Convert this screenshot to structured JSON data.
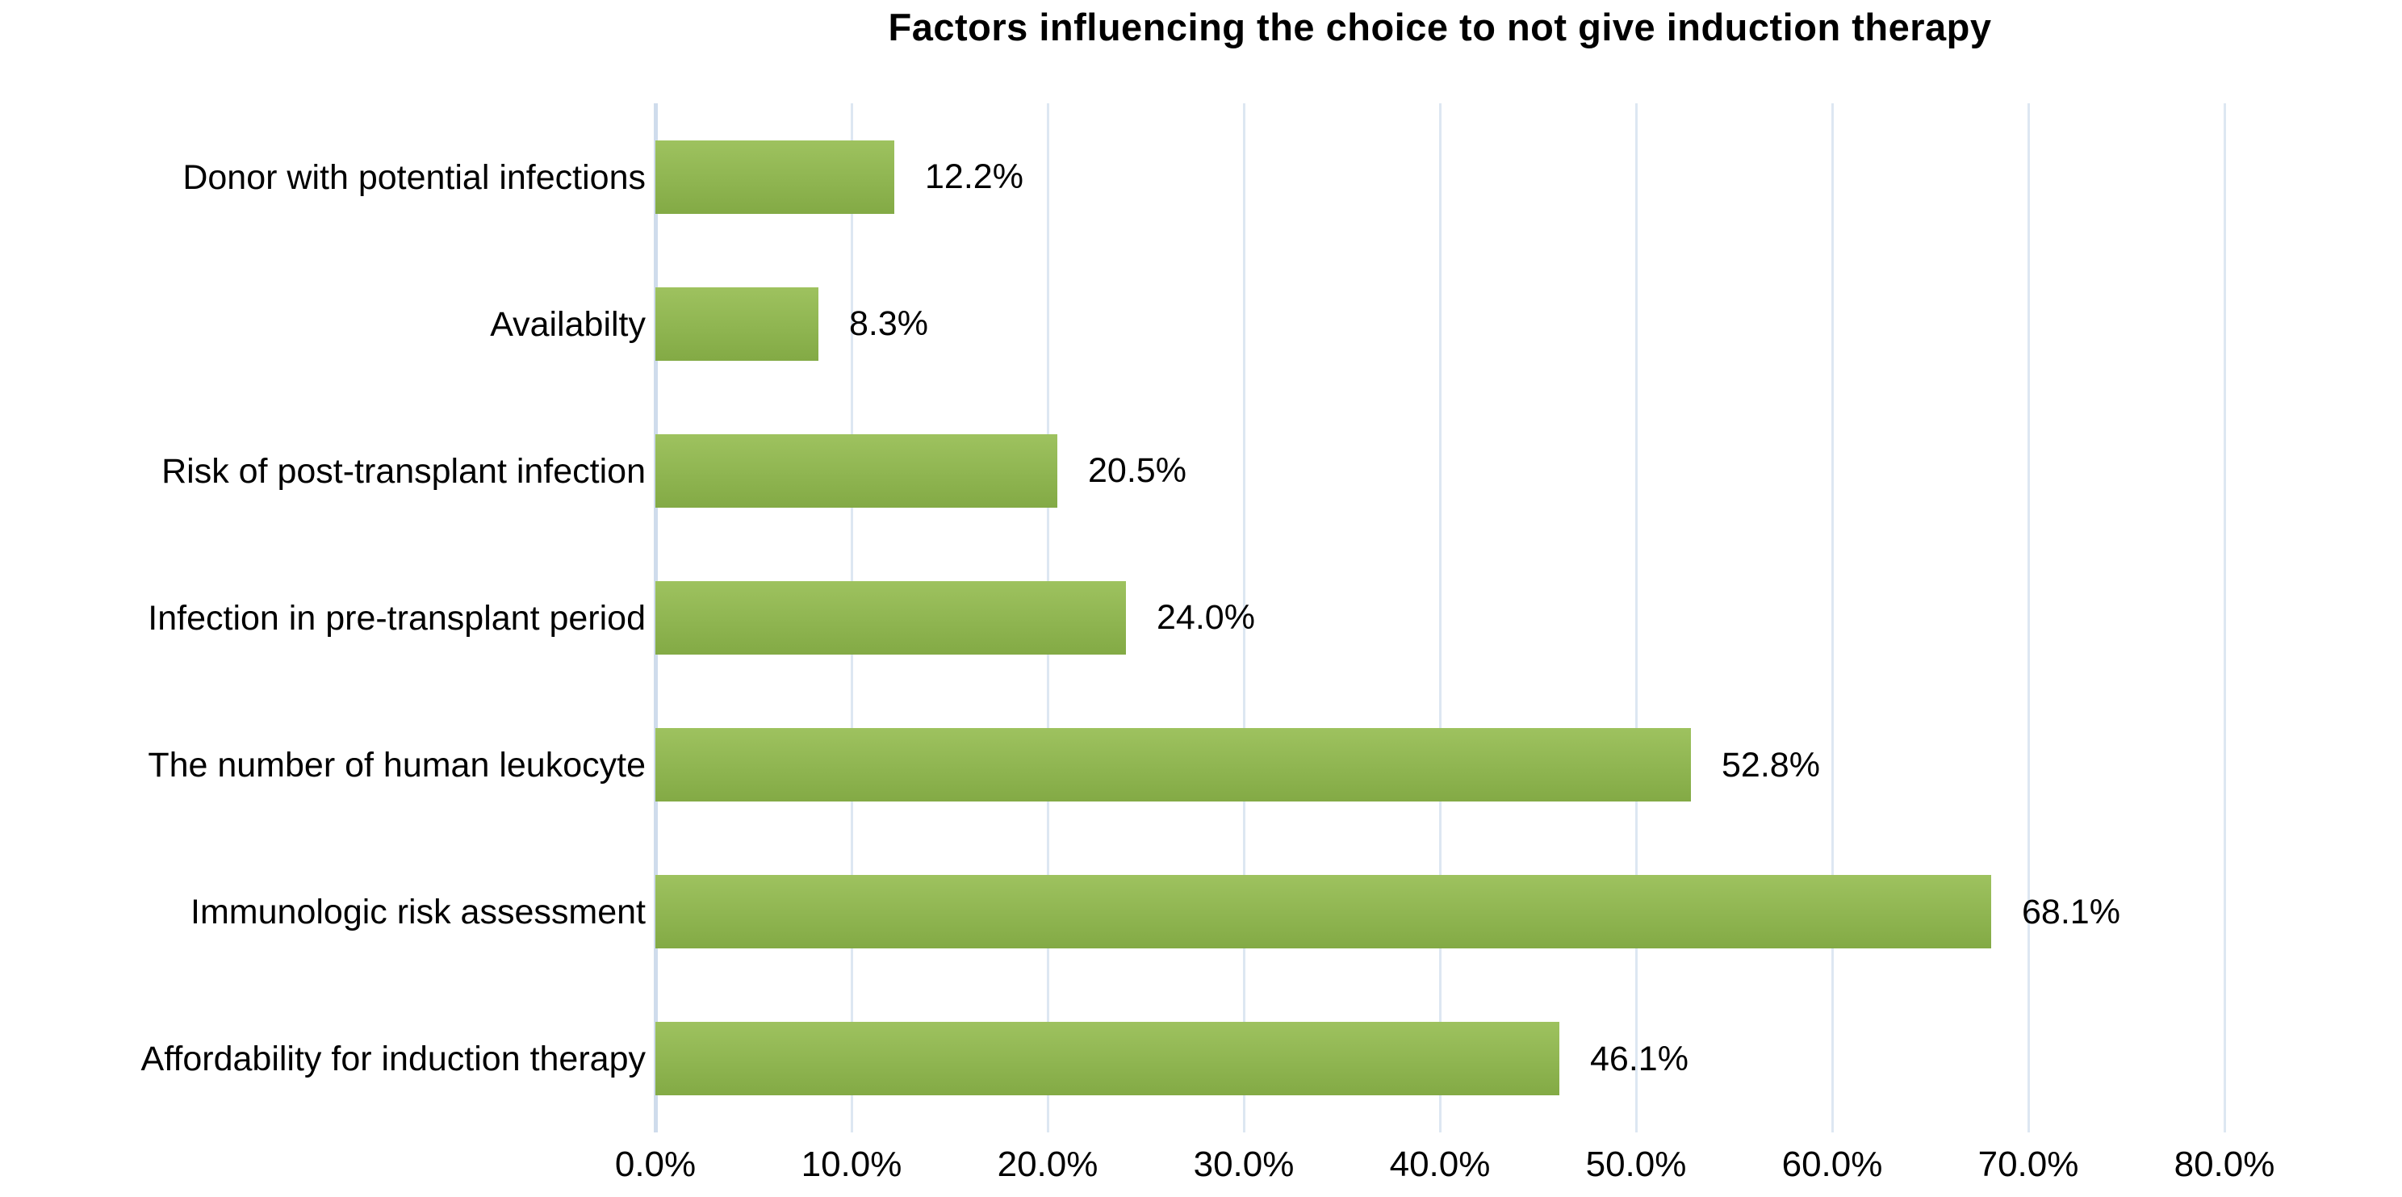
{
  "chart_data": {
    "type": "bar",
    "orientation": "horizontal",
    "title": "Factors influencing the choice to not give induction therapy",
    "categories": [
      "Donor with potential infections",
      "Availabilty",
      "Risk of post-transplant infection",
      "Infection in pre-transplant period",
      "The number of human leukocyte",
      "Immunologic risk assessment",
      "Affordability for induction therapy"
    ],
    "values": [
      12.2,
      8.3,
      20.5,
      24.0,
      52.8,
      68.1,
      46.1
    ],
    "value_labels": [
      "12.2%",
      "8.3%",
      "20.5%",
      "24.0%",
      "52.8%",
      "68.1%",
      "46.1%"
    ],
    "xlabel": "",
    "ylabel": "",
    "xlim": [
      0,
      80
    ],
    "x_tick_step": 10,
    "x_tick_labels": [
      "0.0%",
      "10.0%",
      "20.0%",
      "30.0%",
      "40.0%",
      "50.0%",
      "60.0%",
      "70.0%",
      "80.0%"
    ],
    "grid": "vertical",
    "legend": "none",
    "colors": {
      "bar_gradient_top": "#9ec25f",
      "bar_gradient_bottom": "#83aa45",
      "gridline": "#dde7f2",
      "axis_line": "#cfdcec",
      "text": "#000000",
      "background": "#ffffff"
    }
  }
}
